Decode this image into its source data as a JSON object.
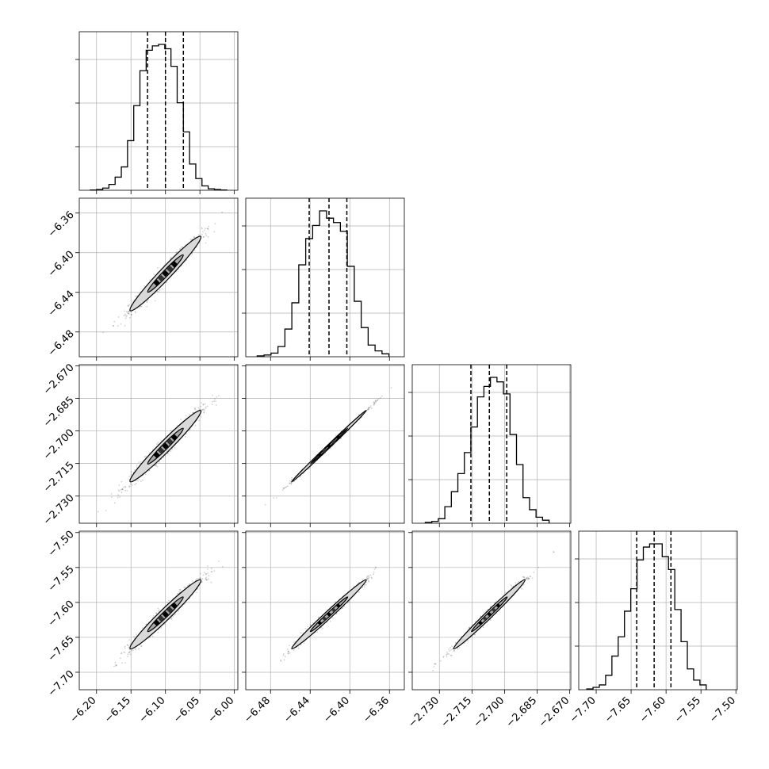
{
  "chart_data": {
    "type": "corner",
    "title": "",
    "grid": true,
    "colors": {
      "line": "#000000",
      "grid": "#b0b0b0",
      "scatter": "#000000"
    },
    "parameters": [
      {
        "lim": [
          -6.225,
          -5.995
        ],
        "ticks": [
          -6.2,
          -6.15,
          -6.1,
          -6.05,
          -6.0
        ],
        "tick_labels": [
          "−6.20",
          "−6.15",
          "−6.10",
          "−6.05",
          "−6.00"
        ],
        "quantiles": [
          -6.126,
          -6.1,
          -6.074
        ],
        "mean": -6.1,
        "sd": 0.026
      },
      {
        "lim": [
          -6.505,
          -6.345
        ],
        "ticks": [
          -6.48,
          -6.44,
          -6.4,
          -6.36
        ],
        "tick_labels": [
          "−6.48",
          "−6.44",
          "−6.40",
          "−6.36"
        ],
        "quantiles": [
          -6.441,
          -6.421,
          -6.403
        ],
        "mean": -6.421,
        "sd": 0.019
      },
      {
        "lim": [
          -2.7425,
          -2.6695
        ],
        "ticks": [
          -2.73,
          -2.715,
          -2.7,
          -2.685,
          -2.67
        ],
        "tick_labels": [
          "−2.730",
          "−2.715",
          "−2.700",
          "−2.685",
          "−2.670"
        ],
        "quantiles": [
          -2.7155,
          -2.707,
          -2.699
        ],
        "mean": -2.707,
        "sd": 0.0083
      },
      {
        "lim": [
          -7.725,
          -7.498
        ],
        "ticks": [
          -7.7,
          -7.65,
          -7.6,
          -7.55,
          -7.5
        ],
        "tick_labels": [
          "−7.70",
          "−7.65",
          "−7.60",
          "−7.55",
          "−7.50"
        ],
        "quantiles": [
          -7.642,
          -7.617,
          -7.593
        ],
        "mean": -7.617,
        "sd": 0.025
      }
    ],
    "histograms": [
      {
        "param": 0,
        "edges": [
          -6.209,
          -6.2,
          -6.191,
          -6.182,
          -6.173,
          -6.164,
          -6.155,
          -6.146,
          -6.137,
          -6.128,
          -6.119,
          -6.11,
          -6.101,
          -6.092,
          -6.083,
          -6.074,
          -6.065,
          -6.056,
          -6.047,
          -6.038,
          -6.029,
          -6.02,
          -6.011
        ],
        "counts": [
          0.2,
          0.5,
          1.5,
          4,
          9,
          16,
          34,
          58,
          82,
          96,
          99,
          100,
          97,
          85,
          60,
          40,
          18,
          8,
          3,
          1,
          0.5,
          0.2
        ]
      },
      {
        "param": 1,
        "edges": [
          -6.4935,
          -6.4865,
          -6.4795,
          -6.4725,
          -6.4655,
          -6.4585,
          -6.4515,
          -6.4445,
          -6.4375,
          -6.4305,
          -6.4235,
          -6.4165,
          -6.4095,
          -6.4025,
          -6.3955,
          -6.3885,
          -6.3815,
          -6.3745,
          -6.3675,
          -6.3605
        ],
        "counts": [
          0.6,
          1.2,
          2.5,
          7,
          19,
          37,
          63,
          81,
          90,
          100,
          95,
          92,
          86,
          62,
          38,
          20,
          8,
          4,
          2
        ]
      },
      {
        "param": 2,
        "edges": [
          -2.7365,
          -2.7335,
          -2.7305,
          -2.7275,
          -2.7245,
          -2.7215,
          -2.7185,
          -2.7155,
          -2.7125,
          -2.7095,
          -2.7065,
          -2.7035,
          -2.7005,
          -2.6975,
          -2.6945,
          -2.6915,
          -2.6885,
          -2.6855,
          -2.6825,
          -2.6795
        ],
        "counts": [
          0.6,
          1.2,
          3,
          11,
          21,
          33,
          47,
          64,
          84,
          91,
          97,
          94,
          86,
          59,
          39,
          17,
          9,
          4,
          2
        ]
      },
      {
        "param": 3,
        "edges": [
          -7.7135,
          -7.7045,
          -7.6955,
          -7.6865,
          -7.6775,
          -7.6685,
          -7.6595,
          -7.6505,
          -7.6415,
          -7.6325,
          -7.6235,
          -7.6145,
          -7.6055,
          -7.5965,
          -7.5875,
          -7.5785,
          -7.5695,
          -7.5605,
          -7.5515,
          -7.5425
        ],
        "counts": [
          0.5,
          1.5,
          3,
          9,
          21,
          33,
          49,
          63,
          81,
          89,
          91,
          91,
          83,
          75,
          50,
          30,
          13,
          6,
          3
        ]
      }
    ],
    "pairs": [
      {
        "x_param": 0,
        "y_param": 1,
        "correlation": 0.975
      },
      {
        "x_param": 0,
        "y_param": 2,
        "correlation": 0.975
      },
      {
        "x_param": 1,
        "y_param": 2,
        "correlation": 0.998
      },
      {
        "x_param": 0,
        "y_param": 3,
        "correlation": 0.975
      },
      {
        "x_param": 1,
        "y_param": 3,
        "correlation": 0.99
      },
      {
        "x_param": 2,
        "y_param": 3,
        "correlation": 0.99
      }
    ],
    "contour_levels": [
      0.39,
      0.86
    ]
  }
}
